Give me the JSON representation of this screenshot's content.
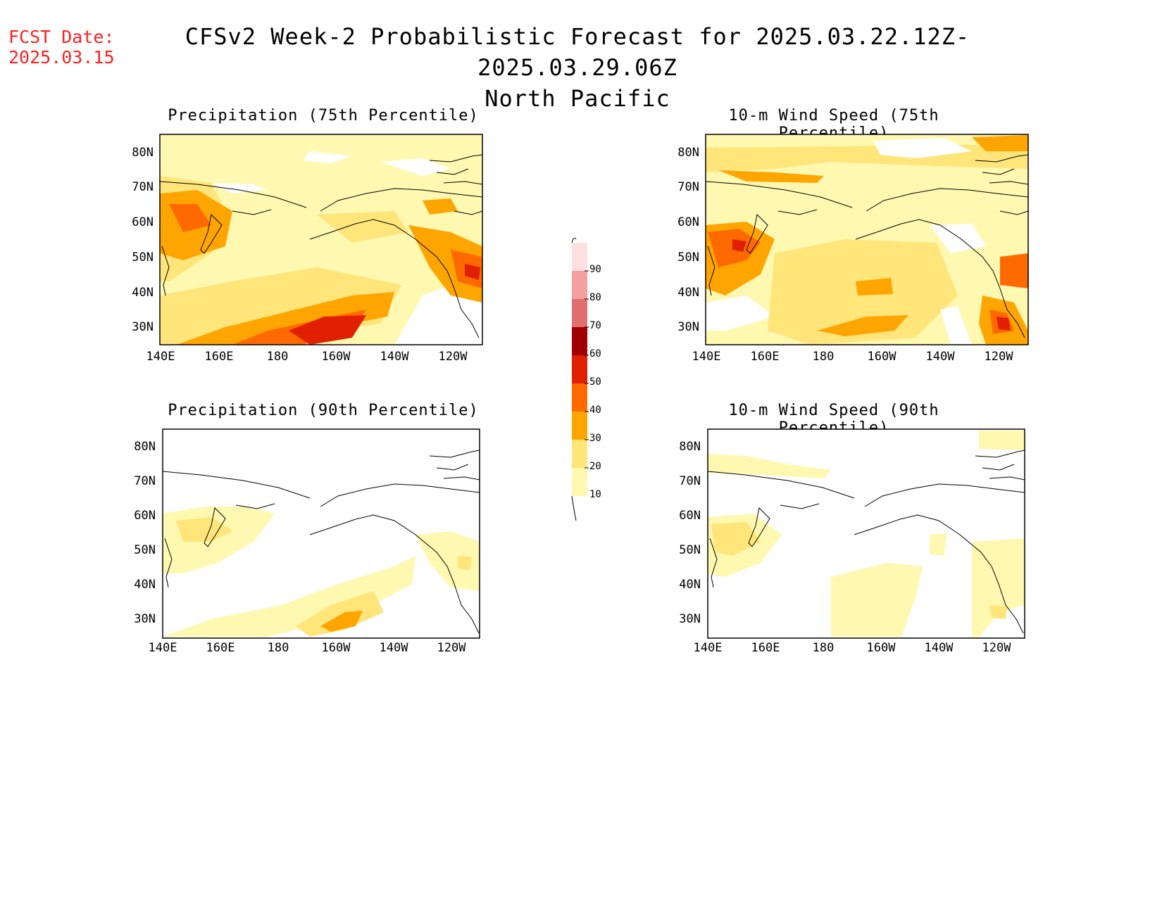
{
  "header": {
    "fcst_label": "FCST Date:",
    "fcst_date": "2025.03.15",
    "title": "CFSv2 Week-2 Probabilistic Forecast for 2025.03.22.12Z-2025.03.29.06Z",
    "subtitle": "North Pacific"
  },
  "panels": [
    {
      "title": "Precipitation (75th Percentile)"
    },
    {
      "title": "10-m Wind Speed (75th Percentile)"
    },
    {
      "title": "Precipitation (90th Percentile)"
    },
    {
      "title": "10-m Wind Speed (90th Percentile)"
    }
  ],
  "axes": {
    "lat_labels": [
      "80N",
      "70N",
      "60N",
      "50N",
      "40N",
      "30N"
    ],
    "lon_labels": [
      "140E",
      "160E",
      "180",
      "160W",
      "140W",
      "120W"
    ]
  },
  "colorbar": {
    "levels": [
      "10",
      "20",
      "30",
      "40",
      "50",
      "60",
      "70",
      "80",
      "90"
    ],
    "colors": [
      "#fff8b0",
      "#ffe57a",
      "#ffa500",
      "#ff6a00",
      "#e02000",
      "#a00000",
      "#e07070",
      "#f5a0a0",
      "#ffe0e0"
    ]
  }
}
